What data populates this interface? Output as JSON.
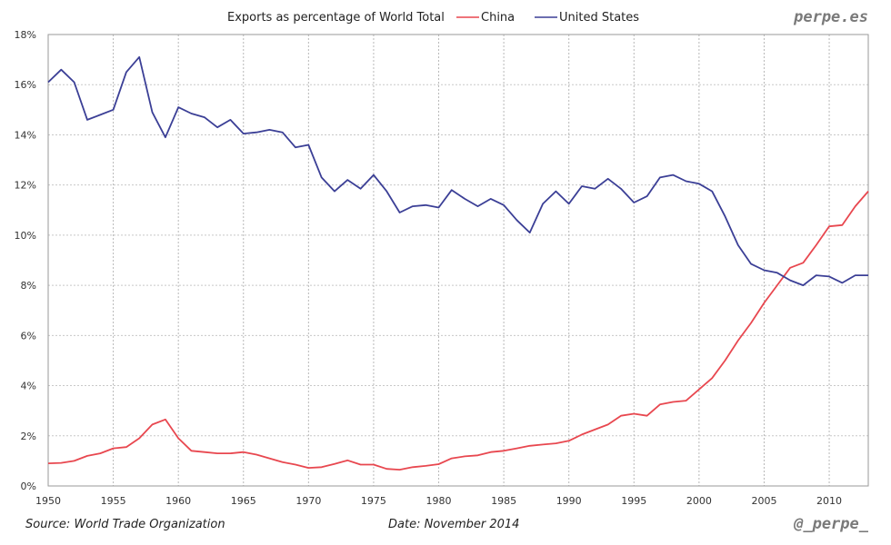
{
  "chart_data": {
    "type": "line",
    "title": "Exports as percentage of World Total",
    "xlabel": "",
    "ylabel": "",
    "xlim": [
      1950,
      2013
    ],
    "ylim": [
      0,
      18
    ],
    "grid": true,
    "legend_position": "top",
    "x_ticks": [
      "1950",
      "1955",
      "1960",
      "1965",
      "1970",
      "1975",
      "1980",
      "1985",
      "1990",
      "1995",
      "2000",
      "2005",
      "2010"
    ],
    "x_tick_values": [
      1950,
      1955,
      1960,
      1965,
      1970,
      1975,
      1980,
      1985,
      1990,
      1995,
      2000,
      2005,
      2010
    ],
    "y_ticks": [
      "0%",
      "2%",
      "4%",
      "6%",
      "8%",
      "10%",
      "12%",
      "14%",
      "16%",
      "18%"
    ],
    "y_tick_values": [
      0,
      2,
      4,
      6,
      8,
      10,
      12,
      14,
      16,
      18
    ],
    "x": [
      1950,
      1951,
      1952,
      1953,
      1954,
      1955,
      1956,
      1957,
      1958,
      1959,
      1960,
      1961,
      1962,
      1963,
      1964,
      1965,
      1966,
      1967,
      1968,
      1969,
      1970,
      1971,
      1972,
      1973,
      1974,
      1975,
      1976,
      1977,
      1978,
      1979,
      1980,
      1981,
      1982,
      1983,
      1984,
      1985,
      1986,
      1987,
      1988,
      1989,
      1990,
      1991,
      1992,
      1993,
      1994,
      1995,
      1996,
      1997,
      1998,
      1999,
      2000,
      2001,
      2002,
      2003,
      2004,
      2005,
      2006,
      2007,
      2008,
      2009,
      2010,
      2011,
      2012,
      2013
    ],
    "series": [
      {
        "name": "China",
        "color": "#e8474f",
        "values": [
          0.9,
          0.92,
          1.0,
          1.2,
          1.3,
          1.5,
          1.55,
          1.9,
          2.45,
          2.65,
          1.9,
          1.4,
          1.35,
          1.3,
          1.3,
          1.35,
          1.25,
          1.1,
          0.95,
          0.85,
          0.72,
          0.75,
          0.88,
          1.02,
          0.85,
          0.85,
          0.68,
          0.65,
          0.75,
          0.8,
          0.87,
          1.1,
          1.18,
          1.22,
          1.35,
          1.4,
          1.5,
          1.6,
          1.65,
          1.7,
          1.8,
          2.05,
          2.25,
          2.45,
          2.8,
          2.88,
          2.8,
          3.25,
          3.35,
          3.4,
          3.85,
          4.3,
          5.0,
          5.8,
          6.5,
          7.3,
          8.0,
          8.7,
          8.9,
          9.6,
          10.35,
          10.4,
          11.15,
          11.75
        ]
      },
      {
        "name": "United States",
        "color": "#3b3f96",
        "values": [
          16.1,
          16.6,
          16.1,
          14.6,
          14.8,
          15.0,
          16.5,
          17.1,
          14.9,
          13.9,
          15.1,
          14.85,
          14.7,
          14.3,
          14.6,
          14.05,
          14.1,
          14.2,
          14.1,
          13.5,
          13.6,
          12.3,
          11.75,
          12.2,
          11.85,
          12.4,
          11.75,
          10.9,
          11.15,
          11.2,
          11.1,
          11.8,
          11.45,
          11.15,
          11.45,
          11.2,
          10.6,
          10.1,
          11.25,
          11.75,
          11.25,
          11.95,
          11.85,
          12.25,
          11.85,
          11.3,
          11.55,
          12.3,
          12.4,
          12.15,
          12.05,
          11.75,
          10.75,
          9.6,
          8.85,
          8.6,
          8.5,
          8.2,
          8.0,
          8.4,
          8.35,
          8.1,
          8.4,
          8.4
        ]
      }
    ]
  },
  "branding": {
    "site": "perpe.es",
    "handle": "@_perpe_"
  },
  "footer": {
    "source": "Source: World Trade Organization",
    "date": "Date: November 2014"
  }
}
